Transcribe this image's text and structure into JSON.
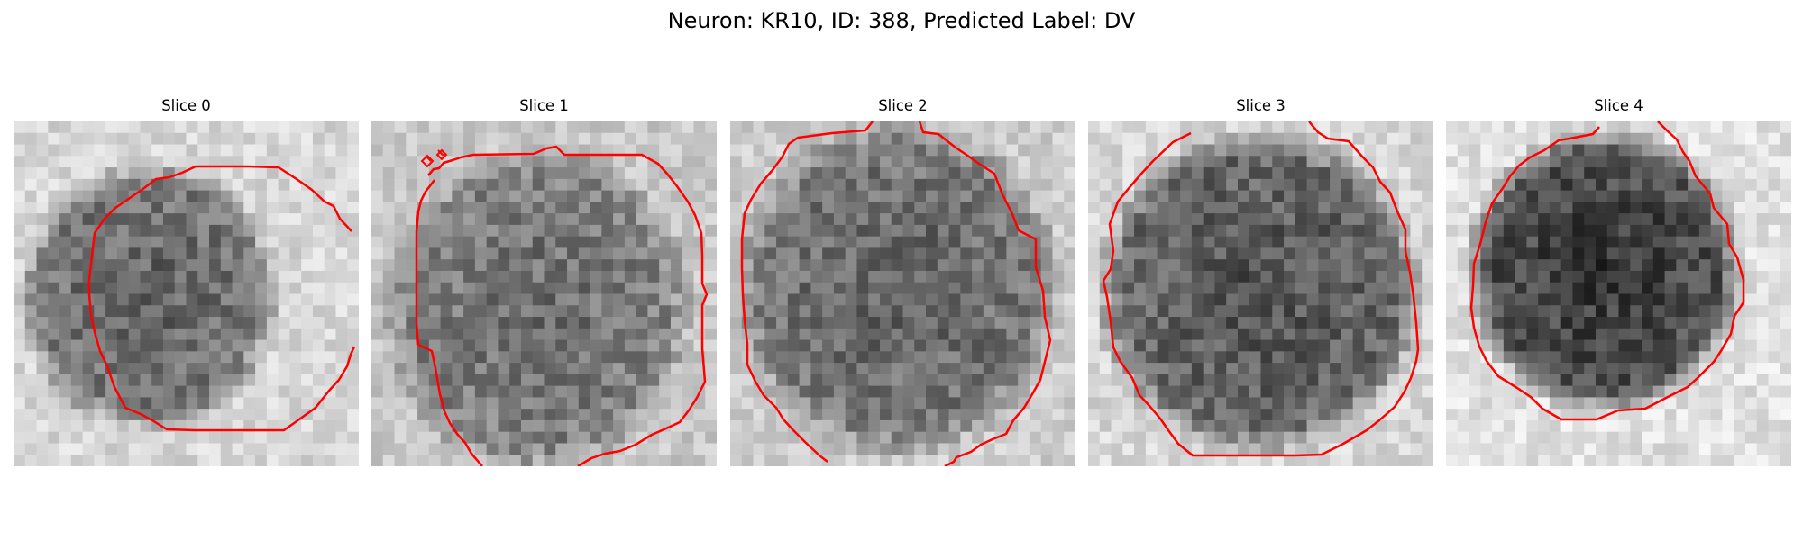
{
  "figure": {
    "title": "Neuron: KR10, ID: 388, Predicted Label: DV"
  },
  "panels": [
    {
      "title": "Slice 0"
    },
    {
      "title": "Slice 1"
    },
    {
      "title": "Slice 2"
    },
    {
      "title": "Slice 3"
    },
    {
      "title": "Slice 4"
    }
  ],
  "colors": {
    "contour": "#ff0000",
    "background": "#ffffff"
  }
}
